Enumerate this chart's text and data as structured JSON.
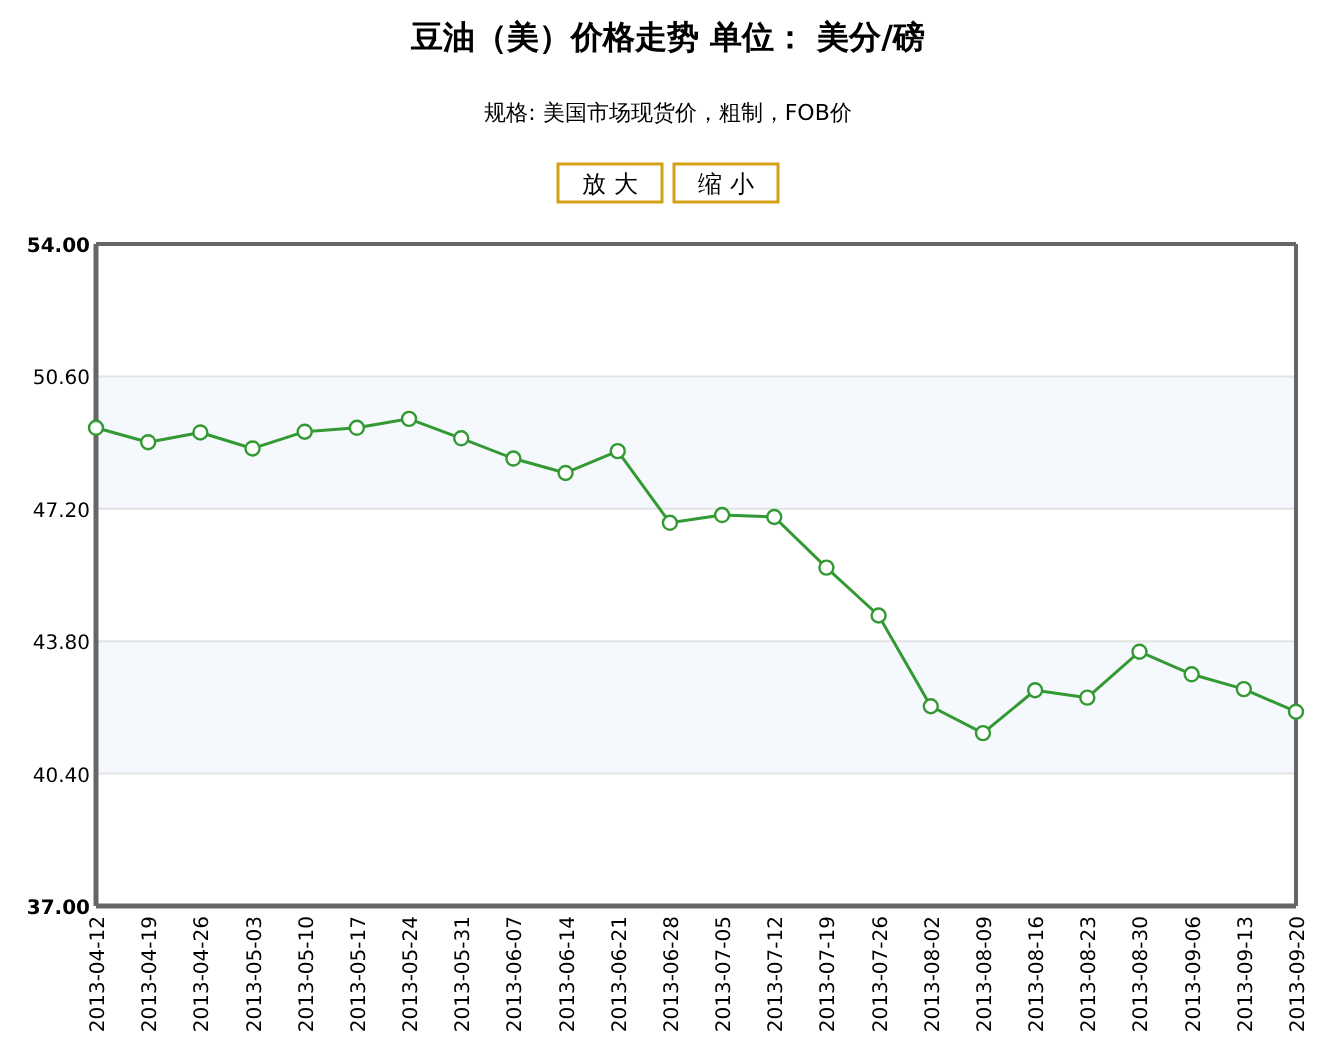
{
  "chart_data": {
    "type": "line",
    "title": "豆油（美）价格走势   单位：  美分/磅",
    "subtitle": "规格: 美国市场现货价，粗制，FOB价",
    "annotations": [
      "放 大",
      "缩 小"
    ],
    "categories": [
      "2013-04-12",
      "2013-04-19",
      "2013-04-26",
      "2013-05-03",
      "2013-05-10",
      "2013-05-17",
      "2013-05-24",
      "2013-05-31",
      "2013-06-07",
      "2013-06-14",
      "2013-06-21",
      "2013-06-28",
      "2013-07-05",
      "2013-07-12",
      "2013-07-19",
      "2013-07-26",
      "2013-08-02",
      "2013-08-09",
      "2013-08-16",
      "2013-08-23",
      "2013-08-30",
      "2013-09-06",
      "2013-09-13",
      "2013-09-20"
    ],
    "series": [
      {
        "color": "#339933",
        "values": [
          49.28,
          48.91,
          49.16,
          48.75,
          49.18,
          49.28,
          49.51,
          49.01,
          48.49,
          48.12,
          48.68,
          46.84,
          47.04,
          46.99,
          45.69,
          44.46,
          42.13,
          41.44,
          42.54,
          42.35,
          43.53,
          42.95,
          42.57,
          41.99
        ]
      }
    ],
    "ylim": [
      37,
      54
    ],
    "yticks": [
      {
        "value": 37,
        "label": "37.00"
      },
      {
        "value": 40.4,
        "label": "40.40"
      },
      {
        "value": 43.8,
        "label": "43.80"
      },
      {
        "value": 47.2,
        "label": "47.20"
      },
      {
        "value": 50.6,
        "label": "50.60"
      },
      {
        "value": 54,
        "label": "54.00"
      }
    ],
    "bands": [
      {
        "axis": "y",
        "from": 40.4,
        "to": 43.8,
        "color": "#f5f9fd"
      },
      {
        "axis": "y",
        "from": 47.2,
        "to": 50.6,
        "color": "#f5f9fd"
      }
    ],
    "grid": "y",
    "marker": "circle",
    "line_style": "solid"
  }
}
